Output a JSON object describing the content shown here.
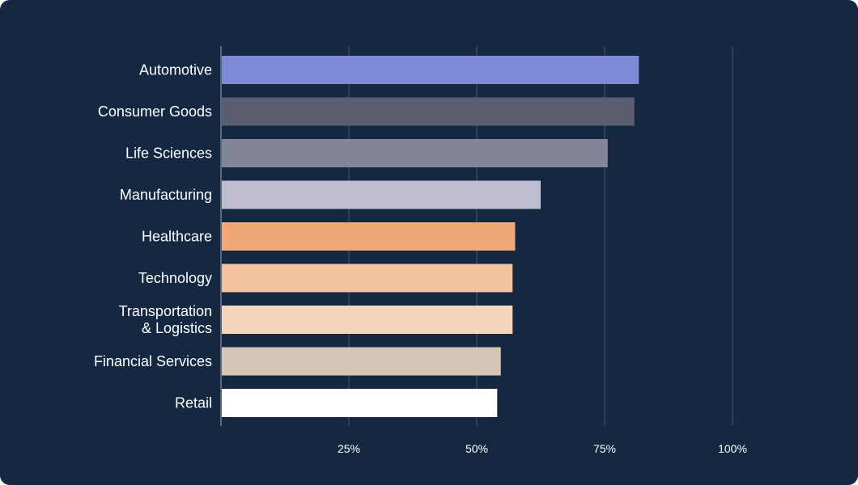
{
  "chart_data": {
    "type": "bar",
    "orientation": "horizontal",
    "categories": [
      "Automotive",
      "Consumer Goods",
      "Life Sciences",
      "Manufacturing",
      "Healthcare",
      "Technology",
      "Transportation\n& Logistics",
      "Financial Services",
      "Retail"
    ],
    "values": [
      81.7,
      80.8,
      75.6,
      62.5,
      57.5,
      57.0,
      57.0,
      54.7,
      54.0
    ],
    "colors": [
      "#7d8bd6",
      "#5a5e70",
      "#838599",
      "#bebdcf",
      "#efa878",
      "#f0c29e",
      "#f4d6bf",
      "#d5c7b8",
      "#ffffff"
    ],
    "xlim": [
      0,
      100
    ],
    "x_ticks": [
      25,
      50,
      75,
      100
    ],
    "x_tick_labels": [
      "25%",
      "50%",
      "75%",
      "100%"
    ],
    "grid": "vertical",
    "background": "#152842"
  }
}
